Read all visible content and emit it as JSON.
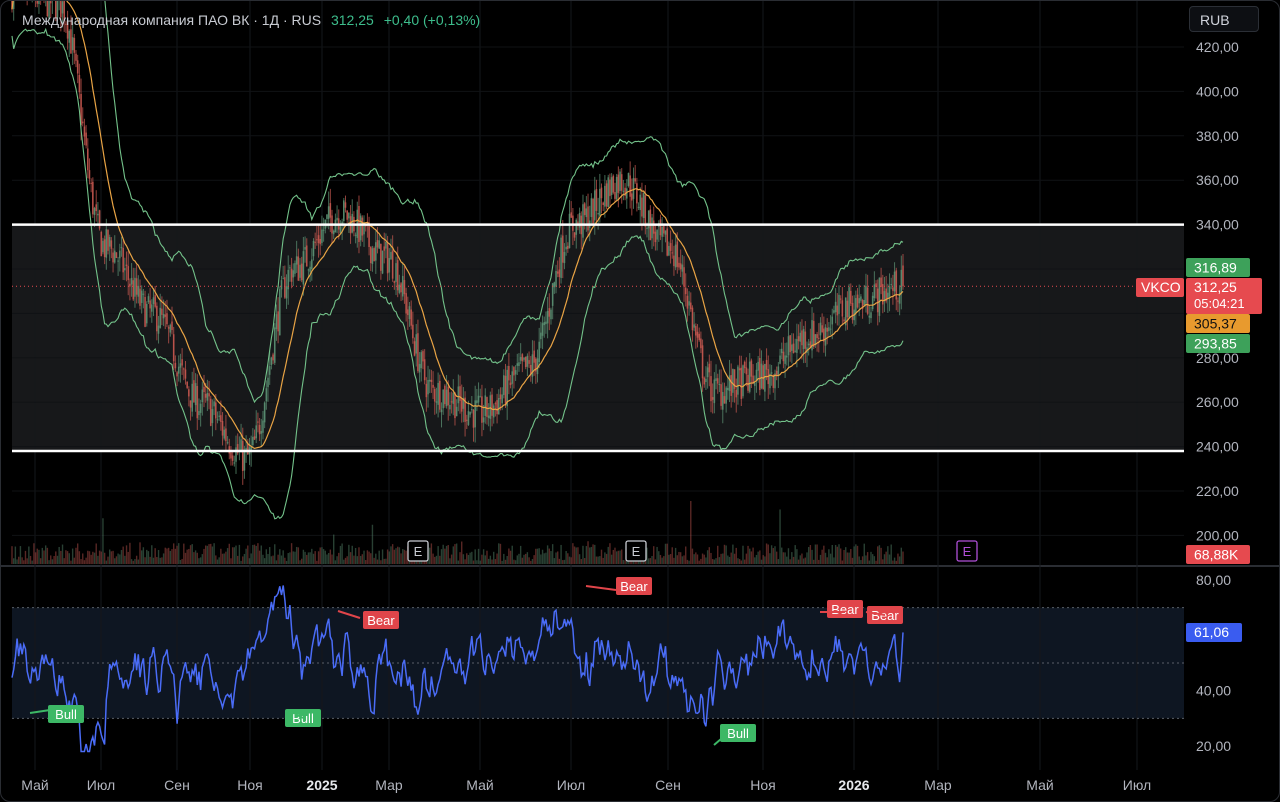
{
  "header": {
    "instrument": "Международная компания ПАО ВК · 1Д · RUS",
    "last_price": "312,25",
    "change": "+0,40 (+0,13%)"
  },
  "currency_button": "RUB",
  "colors": {
    "background": "#000000",
    "up_candle": "#5b8f72",
    "down_candle": "#c4574f",
    "bollinger": "#73c28a",
    "sma": "#e9a445",
    "rsi_line": "#4a6cf7",
    "bear_label": "#e0454a",
    "bull_label": "#3db866",
    "range_lines": "#ffffff",
    "price_label": "#e64a4f",
    "earnings_marker": "#b04fd8"
  },
  "chart_data": [
    {
      "type": "candlestick",
      "title": "",
      "price_axis": {
        "ticks": [
          "420,00",
          "400,00",
          "380,00",
          "360,00",
          "340,00",
          "320,00",
          "300,00",
          "280,00",
          "260,00",
          "240,00",
          "220,00",
          "200,00"
        ],
        "ylim": [
          195,
          430
        ]
      },
      "time_axis": {
        "labels": [
          "Май",
          "Июл",
          "Сен",
          "Ноя",
          "2025",
          "Мар",
          "Май",
          "Июл",
          "Сен",
          "Ноя",
          "2026",
          "Мар",
          "Май",
          "Июл"
        ],
        "bold_labels": [
          "2025",
          "2026"
        ]
      },
      "range_lines": [
        340,
        238
      ],
      "close_series_anchors": [
        [
          "Май",
          445
        ],
        [
          "Июл",
          440
        ],
        [
          "Сен",
          330
        ],
        [
          "Окт",
          300
        ],
        [
          "Ноя",
          260
        ],
        [
          "Дек",
          235
        ],
        [
          "2025",
          320
        ],
        [
          "Фев",
          345
        ],
        [
          "Мар",
          325
        ],
        [
          "Апр",
          265
        ],
        [
          "Май",
          255
        ],
        [
          "Июн",
          275
        ],
        [
          "Июл",
          340
        ],
        [
          "Авг",
          360
        ],
        [
          "Сен",
          330
        ],
        [
          "Окт",
          265
        ],
        [
          "Ноя",
          272
        ],
        [
          "Дек",
          290
        ],
        [
          "2026",
          305
        ],
        [
          "Фев",
          312.25
        ]
      ],
      "indicators": {
        "bollinger_upper_last": "316,89",
        "sma_last": "305,37",
        "bollinger_lower_last": "293,85"
      },
      "symbol_label": "VKCO",
      "last_price_label": "312,25",
      "countdown": "05:04:21",
      "volume_label": "68,88K",
      "earnings_markers": [
        "E",
        "E",
        "E"
      ]
    },
    {
      "type": "line",
      "title": "",
      "name": "RSI",
      "axis_ticks": [
        "80,00",
        "40,00",
        "20,00"
      ],
      "ylim": [
        15,
        85
      ],
      "bands": [
        70,
        50,
        30
      ],
      "last_value": "61,06",
      "divergence_labels": [
        {
          "text": "Bull"
        },
        {
          "text": "Bull"
        },
        {
          "text": "Bear"
        },
        {
          "text": "Bear"
        },
        {
          "text": "Bull"
        },
        {
          "text": "Bear"
        },
        {
          "text": "Bear"
        }
      ]
    }
  ]
}
